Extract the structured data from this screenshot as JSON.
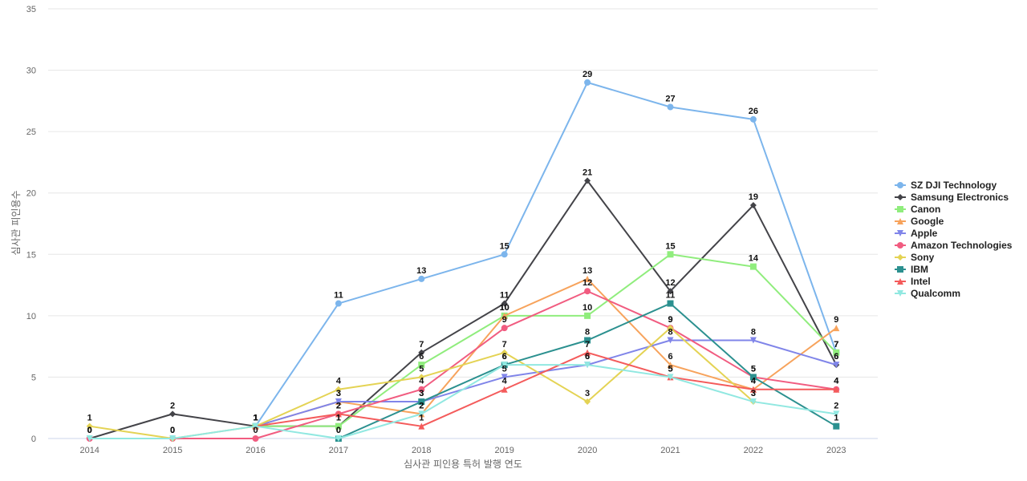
{
  "chart_data": {
    "type": "line",
    "title": "",
    "xlabel": "심사관 피인용 특허 발행 연도",
    "ylabel": "심사관 피인용수",
    "categories": [
      "2014",
      "2015",
      "2016",
      "2017",
      "2018",
      "2019",
      "2020",
      "2021",
      "2022",
      "2023"
    ],
    "ylim": [
      0,
      35
    ],
    "yticks": [
      0,
      5,
      10,
      15,
      20,
      25,
      30,
      35
    ],
    "grid": true,
    "legend_position": "right",
    "series": [
      {
        "name": "SZ DJI Technology",
        "color": "#7cb5ec",
        "marker": "circle",
        "values": [
          null,
          null,
          1,
          11,
          13,
          15,
          29,
          27,
          26,
          7
        ]
      },
      {
        "name": "Samsung Electronics",
        "color": "#434348",
        "marker": "diamond",
        "values": [
          0,
          2,
          1,
          1,
          7,
          11,
          21,
          12,
          19,
          6
        ]
      },
      {
        "name": "Canon",
        "color": "#90ed7d",
        "marker": "square",
        "values": [
          null,
          null,
          1,
          1,
          6,
          10,
          10,
          15,
          14,
          7
        ]
      },
      {
        "name": "Google",
        "color": "#f7a35c",
        "marker": "triangle",
        "values": [
          null,
          null,
          1,
          3,
          2,
          10,
          13,
          6,
          4,
          9
        ]
      },
      {
        "name": "Apple",
        "color": "#8085e9",
        "marker": "triangle-down",
        "values": [
          null,
          null,
          1,
          3,
          3,
          5,
          6,
          8,
          8,
          6
        ]
      },
      {
        "name": "Amazon Technologies",
        "color": "#f15c80",
        "marker": "circle",
        "values": [
          0,
          0,
          0,
          2,
          4,
          9,
          12,
          9,
          5,
          4
        ]
      },
      {
        "name": "Sony",
        "color": "#e4d354",
        "marker": "diamond",
        "values": [
          1,
          0,
          1,
          4,
          5,
          7,
          3,
          9,
          3,
          null
        ]
      },
      {
        "name": "IBM",
        "color": "#2b908f",
        "marker": "square",
        "values": [
          null,
          null,
          null,
          0,
          3,
          6,
          8,
          11,
          5,
          1
        ]
      },
      {
        "name": "Intel",
        "color": "#f45b5b",
        "marker": "triangle",
        "values": [
          null,
          null,
          1,
          2,
          1,
          4,
          7,
          5,
          4,
          4
        ]
      },
      {
        "name": "Qualcomm",
        "color": "#91e8e1",
        "marker": "triangle-down",
        "values": [
          0,
          0,
          1,
          0,
          2,
          6,
          6,
          5,
          3,
          2
        ]
      }
    ]
  }
}
